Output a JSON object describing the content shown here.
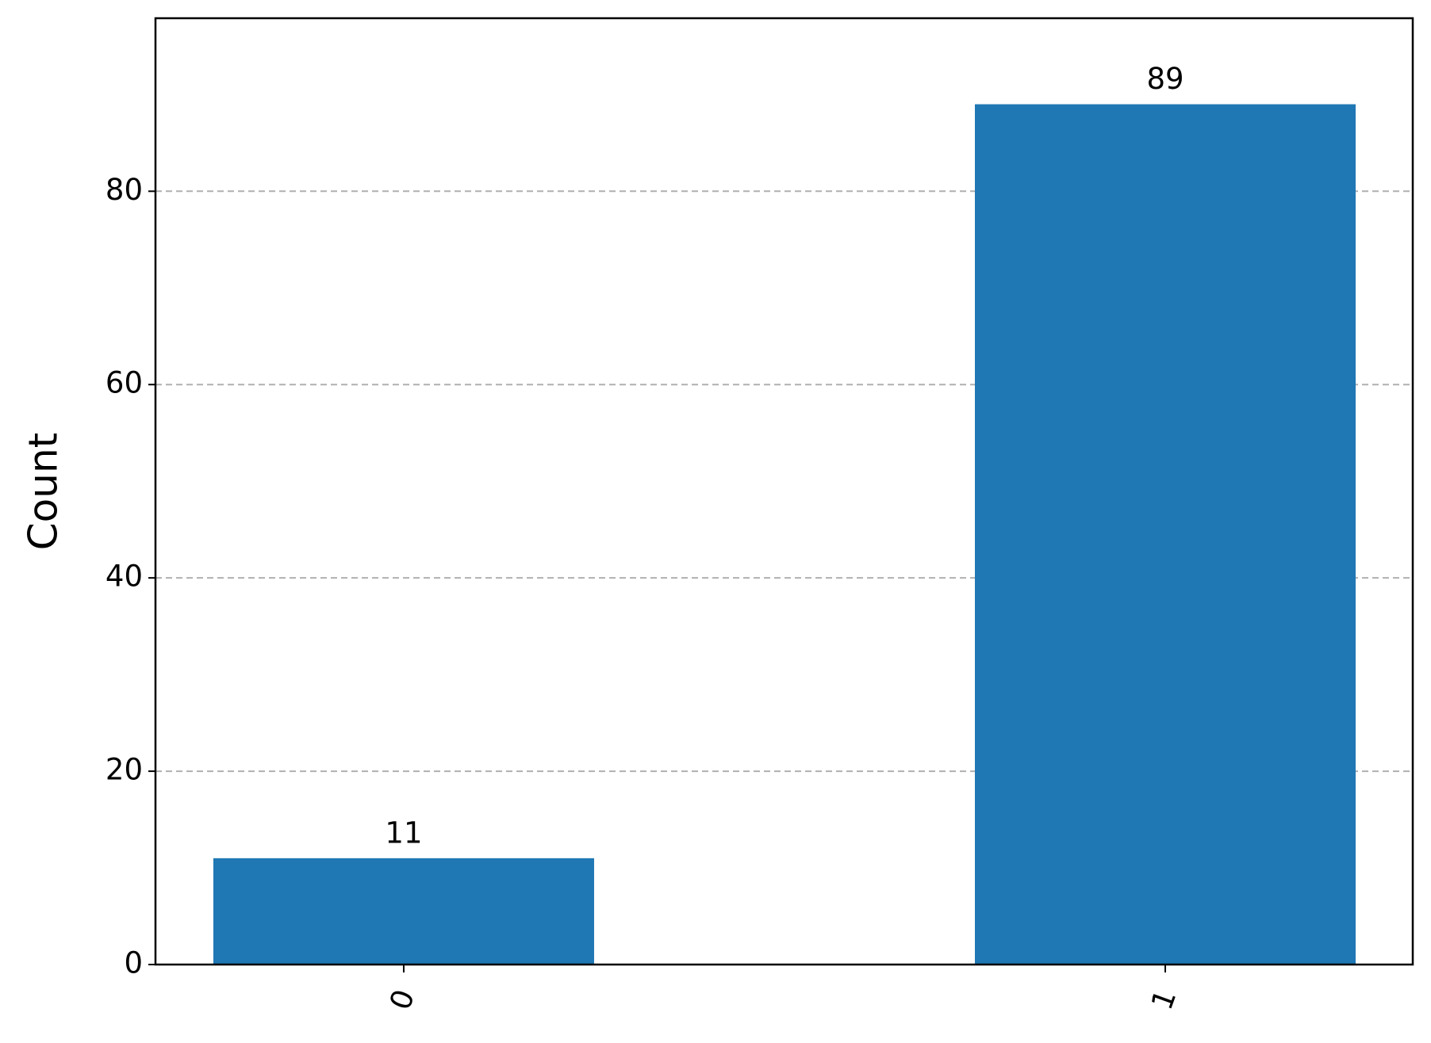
{
  "chart_data": {
    "type": "bar",
    "y_label": "Count",
    "categories": [
      "0",
      "1"
    ],
    "values": [
      11,
      89
    ],
    "color": "#1f77b4",
    "ylim": [
      0,
      97.9
    ],
    "yticks": [
      0,
      20,
      40,
      60,
      80
    ],
    "grid": true,
    "data_labels": true
  }
}
